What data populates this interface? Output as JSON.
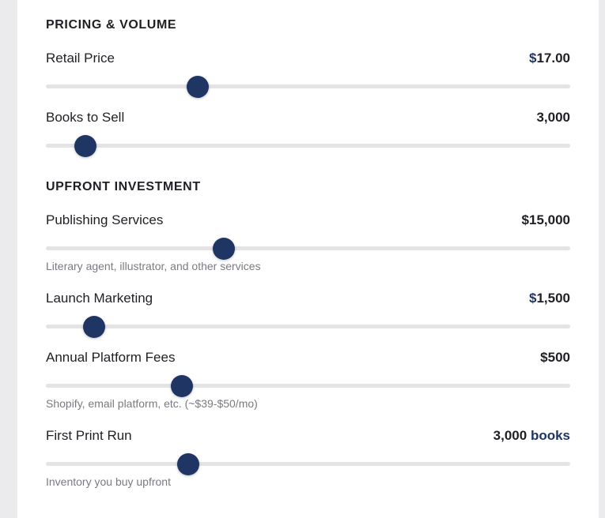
{
  "sections": {
    "pricing": "PRICING & VOLUME",
    "upfront": "UPFRONT INVESTMENT"
  },
  "sliders": {
    "retail_price": {
      "label": "Retail Price",
      "value_prefix": "$",
      "value_text": "17.00",
      "fraction": 0.29
    },
    "books_to_sell": {
      "label": "Books to Sell",
      "value_text": "3,000",
      "fraction": 0.075
    },
    "publishing_services": {
      "label": "Publishing Services",
      "value_text": "$15,000",
      "hint": "Literary agent, illustrator, and other services",
      "fraction": 0.34
    },
    "launch_marketing": {
      "label": "Launch Marketing",
      "value_prefix": "$",
      "value_text": "1,500",
      "fraction": 0.092
    },
    "annual_platform_fees": {
      "label": "Annual Platform Fees",
      "value_text": "$500",
      "hint": "Shopify, email platform, etc. (~$39-$50/mo)",
      "fraction": 0.259
    },
    "first_print_run": {
      "label": "First Print Run",
      "value_text": "3,000",
      "value_unit": "books",
      "hint": "Inventory you buy upfront",
      "fraction": 0.271
    }
  },
  "colors": {
    "accent": "#1f3564",
    "track": "#e4e4e7",
    "text": "#1f1f24",
    "hint": "#7a7a82"
  }
}
